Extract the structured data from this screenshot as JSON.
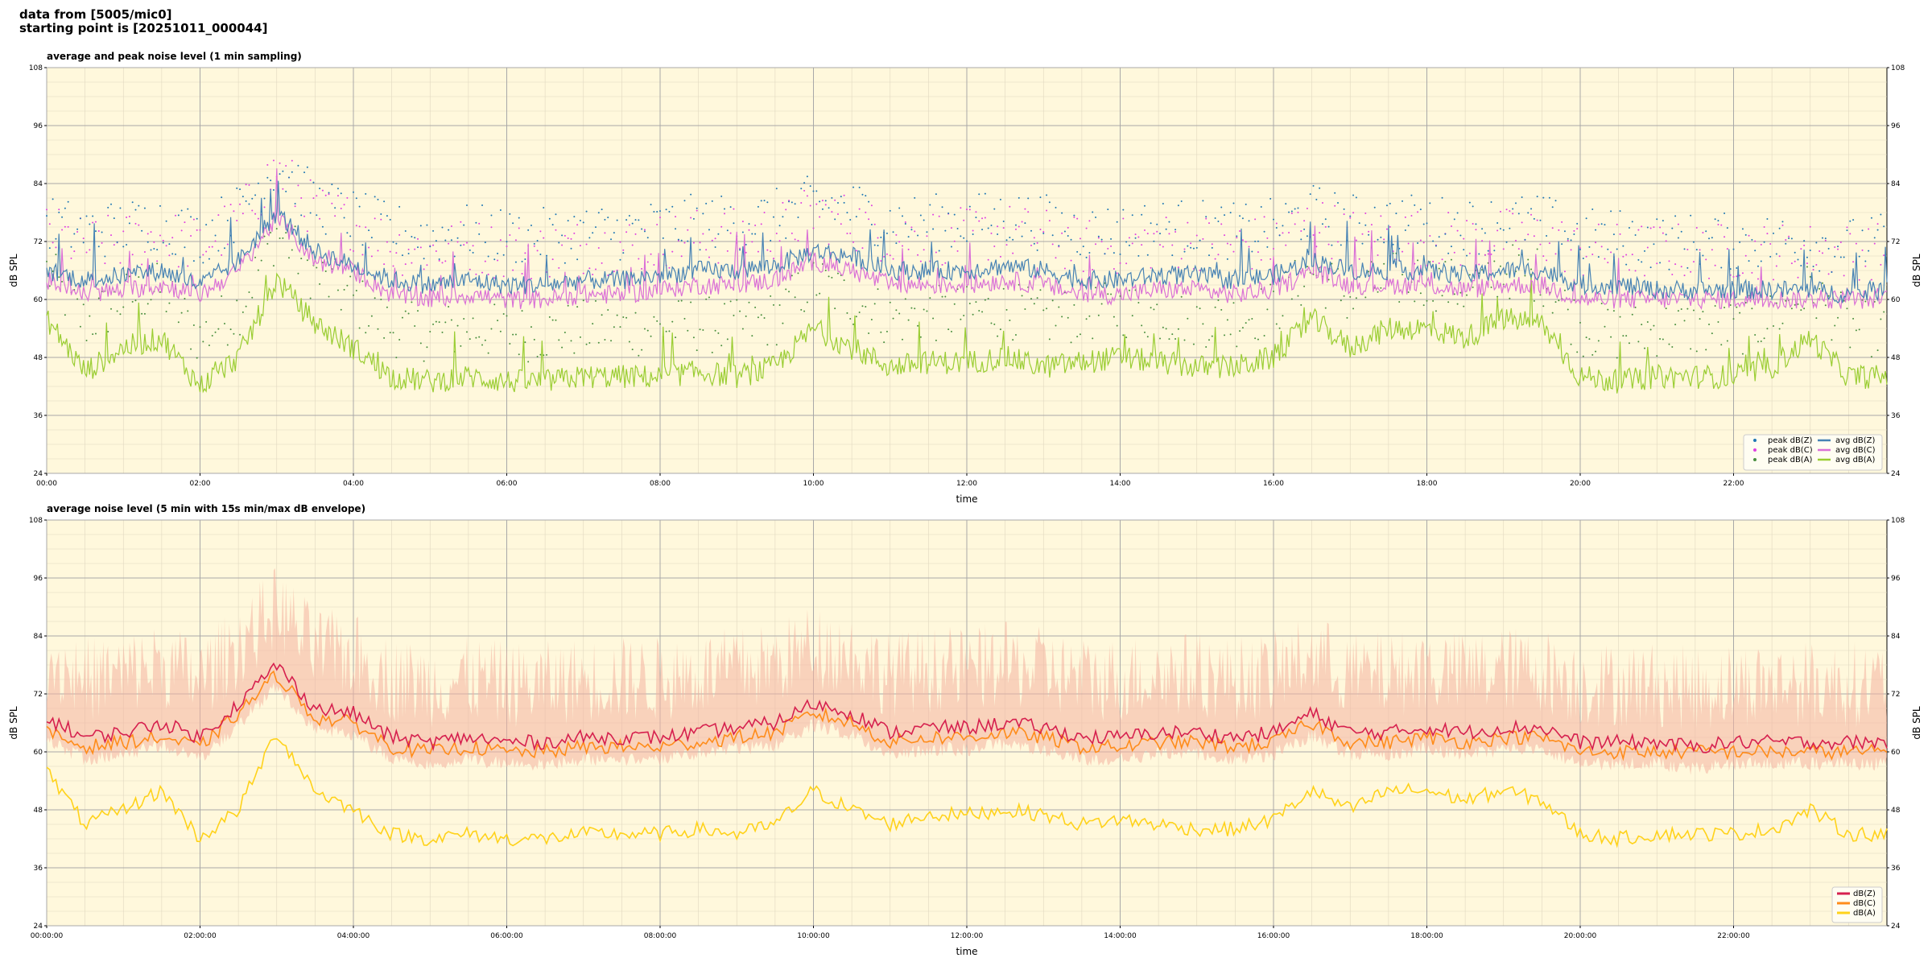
{
  "header": {
    "line1": "data from [5005/mic0]",
    "line2": "starting point is [20251011_000044]"
  },
  "chart_data": [
    {
      "type": "line",
      "title": "average and peak noise level (1 min sampling)",
      "xlabel": "time",
      "ylabel": "dB SPL",
      "ylim": [
        24,
        108
      ],
      "xlim_hours": [
        0,
        24
      ],
      "yticks": [
        24,
        36,
        48,
        60,
        72,
        84,
        96,
        108
      ],
      "xticks": [
        "00:00",
        "02:00",
        "04:00",
        "06:00",
        "08:00",
        "10:00",
        "12:00",
        "14:00",
        "16:00",
        "18:00",
        "20:00",
        "22:00"
      ],
      "grid": true,
      "legend_position": "lower right",
      "legend": [
        "peak dB(Z)",
        "peak dB(C)",
        "peak dB(A)",
        "avg dB(Z)",
        "avg dB(C)",
        "avg dB(A)"
      ],
      "colors": {
        "peak_z": "#1f77b4",
        "peak_c": "#e040e0",
        "peak_a": "#4a8f3f",
        "avg_z": "#4682b4",
        "avg_c": "#da70d6",
        "avg_a": "#9acd32"
      },
      "series_hourly": {
        "x_hours": [
          0,
          0.5,
          1,
          1.5,
          2,
          2.5,
          3,
          3.5,
          4,
          4.5,
          5,
          5.5,
          6,
          6.5,
          7,
          7.5,
          8,
          8.5,
          9,
          9.5,
          10,
          10.5,
          11,
          11.5,
          12,
          12.5,
          13,
          13.5,
          14,
          14.5,
          15,
          15.5,
          16,
          16.5,
          17,
          17.5,
          18,
          18.5,
          19,
          19.5,
          20,
          20.5,
          21,
          21.5,
          22,
          22.5,
          23,
          23.5,
          24
        ],
        "avg dB(Z)": [
          66,
          64,
          65,
          66,
          63,
          68,
          78,
          70,
          67,
          64,
          63,
          64,
          63,
          63,
          64,
          64,
          65,
          66,
          66,
          67,
          70,
          69,
          66,
          66,
          66,
          67,
          66,
          64,
          64,
          65,
          65,
          64,
          65,
          68,
          66,
          66,
          66,
          65,
          66,
          66,
          63,
          63,
          62,
          62,
          62,
          62,
          62,
          61,
          62
        ],
        "avg dB(C)": [
          64,
          61,
          62,
          63,
          61,
          66,
          77,
          68,
          66,
          61,
          60,
          61,
          60,
          60,
          61,
          61,
          62,
          63,
          63,
          64,
          68,
          66,
          63,
          63,
          63,
          64,
          63,
          61,
          61,
          62,
          62,
          61,
          62,
          66,
          63,
          63,
          63,
          62,
          63,
          63,
          60,
          60,
          60,
          60,
          60,
          60,
          60,
          60,
          60
        ],
        "avg dB(A)": [
          56,
          45,
          50,
          52,
          42,
          48,
          64,
          55,
          50,
          44,
          43,
          44,
          43,
          43,
          44,
          44,
          44,
          45,
          44,
          46,
          54,
          50,
          46,
          47,
          47,
          48,
          46,
          47,
          48,
          47,
          46,
          46,
          48,
          56,
          50,
          54,
          54,
          52,
          56,
          55,
          44,
          43,
          44,
          44,
          44,
          46,
          52,
          44,
          44
        ]
      }
    },
    {
      "type": "line",
      "title": "average noise level (5 min with 15s min/max dB envelope)",
      "xlabel": "time",
      "ylabel": "dB SPL",
      "ylim": [
        24,
        108
      ],
      "xlim_hours": [
        0,
        24
      ],
      "yticks": [
        24,
        36,
        48,
        60,
        72,
        84,
        96,
        108
      ],
      "xticks": [
        "00:00:00",
        "02:00:00",
        "04:00:00",
        "06:00:00",
        "08:00:00",
        "10:00:00",
        "12:00:00",
        "14:00:00",
        "16:00:00",
        "18:00:00",
        "20:00:00",
        "22:00:00"
      ],
      "grid": true,
      "legend_position": "lower right",
      "legend": [
        "dB(Z)",
        "dB(C)",
        "dB(A)"
      ],
      "colors": {
        "z": "#d6204e",
        "c": "#ff8c1a",
        "a": "#ffd21a",
        "envelope": "#f4b3a0"
      },
      "series_hourly": {
        "x_hours": [
          0,
          0.5,
          1,
          1.5,
          2,
          2.5,
          3,
          3.5,
          4,
          4.5,
          5,
          5.5,
          6,
          6.5,
          7,
          7.5,
          8,
          8.5,
          9,
          9.5,
          10,
          10.5,
          11,
          11.5,
          12,
          12.5,
          13,
          13.5,
          14,
          14.5,
          15,
          15.5,
          16,
          16.5,
          17,
          17.5,
          18,
          18.5,
          19,
          19.5,
          20,
          20.5,
          21,
          21.5,
          22,
          22.5,
          23,
          23.5,
          24
        ],
        "dB(Z)": [
          67,
          63,
          64,
          66,
          63,
          70,
          78,
          69,
          68,
          63,
          62,
          63,
          62,
          62,
          63,
          63,
          63,
          64,
          65,
          66,
          70,
          68,
          64,
          65,
          65,
          66,
          65,
          63,
          63,
          64,
          64,
          63,
          64,
          68,
          64,
          64,
          65,
          64,
          65,
          65,
          62,
          62,
          62,
          61,
          62,
          62,
          62,
          62,
          62
        ],
        "dB(C)": [
          64,
          61,
          62,
          63,
          61,
          68,
          76,
          67,
          66,
          61,
          60,
          61,
          60,
          60,
          61,
          61,
          61,
          62,
          63,
          64,
          68,
          66,
          62,
          63,
          63,
          64,
          63,
          61,
          61,
          62,
          62,
          61,
          62,
          66,
          62,
          62,
          63,
          62,
          63,
          63,
          60,
          60,
          60,
          60,
          60,
          60,
          60,
          60,
          60
        ],
        "dB(A)": [
          56,
          45,
          48,
          52,
          42,
          48,
          64,
          52,
          48,
          43,
          42,
          43,
          42,
          42,
          43,
          43,
          43,
          44,
          43,
          45,
          52,
          48,
          45,
          47,
          47,
          48,
          47,
          45,
          46,
          45,
          44,
          44,
          46,
          52,
          48,
          52,
          52,
          50,
          52,
          50,
          43,
          42,
          43,
          43,
          43,
          44,
          48,
          43,
          43
        ]
      }
    }
  ]
}
